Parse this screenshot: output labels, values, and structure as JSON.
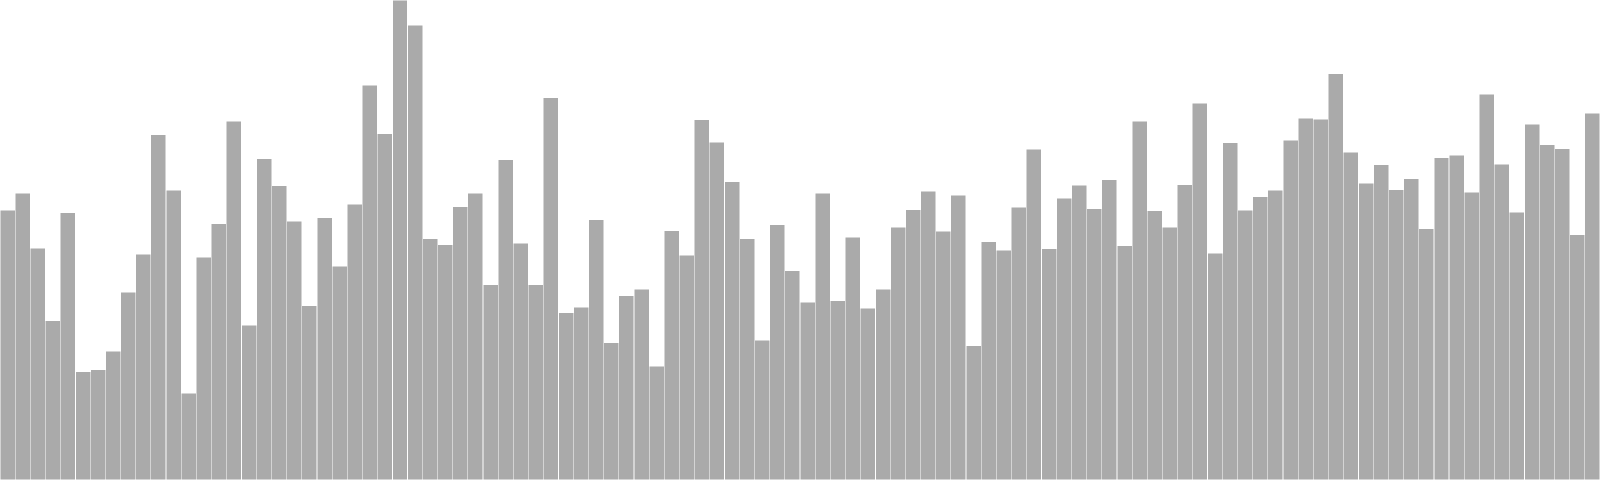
{
  "chart_data": {
    "type": "bar",
    "title": "",
    "xlabel": "",
    "ylabel": "",
    "ylim": [
      0,
      100
    ],
    "grid": false,
    "legend": "none",
    "bar_color": "#aaaaaa",
    "bar_edge_color": "#ffffff",
    "series": [
      {
        "values": [
          56.2,
          59.8,
          48.3,
          33.2,
          55.7,
          22.6,
          23.0,
          26.8,
          39.1,
          47.0,
          71.9,
          60.4,
          18.1,
          46.4,
          53.4,
          74.7,
          32.3,
          66.9,
          61.3,
          53.9,
          36.3,
          54.6,
          44.5,
          57.5,
          82.3,
          72.1,
          100.0,
          94.7,
          50.3,
          49.0,
          56.9,
          59.7,
          40.7,
          66.7,
          49.3,
          40.7,
          79.6,
          34.9,
          36.0,
          54.2,
          28.6,
          38.4,
          39.7,
          23.7,
          51.9,
          46.8,
          75.1,
          70.4,
          62.1,
          50.3,
          29.1,
          53.2,
          43.6,
          37.0,
          59.8,
          37.4,
          50.6,
          35.8,
          39.8,
          52.7,
          56.3,
          60.2,
          51.8,
          59.3,
          28.0,
          49.6,
          47.9,
          56.8,
          68.9,
          48.2,
          58.7,
          61.4,
          56.5,
          62.6,
          48.8,
          74.7,
          56.1,
          52.7,
          61.5,
          78.5,
          47.2,
          70.3,
          56.2,
          59.0,
          60.4,
          70.8,
          75.4,
          75.2,
          84.6,
          68.3,
          61.8,
          65.7,
          60.5,
          62.8,
          52.4,
          67.1,
          67.7,
          60.0,
          80.4,
          65.8,
          55.8,
          74.1,
          69.9,
          69.0,
          51.1,
          76.4
        ]
      }
    ]
  }
}
